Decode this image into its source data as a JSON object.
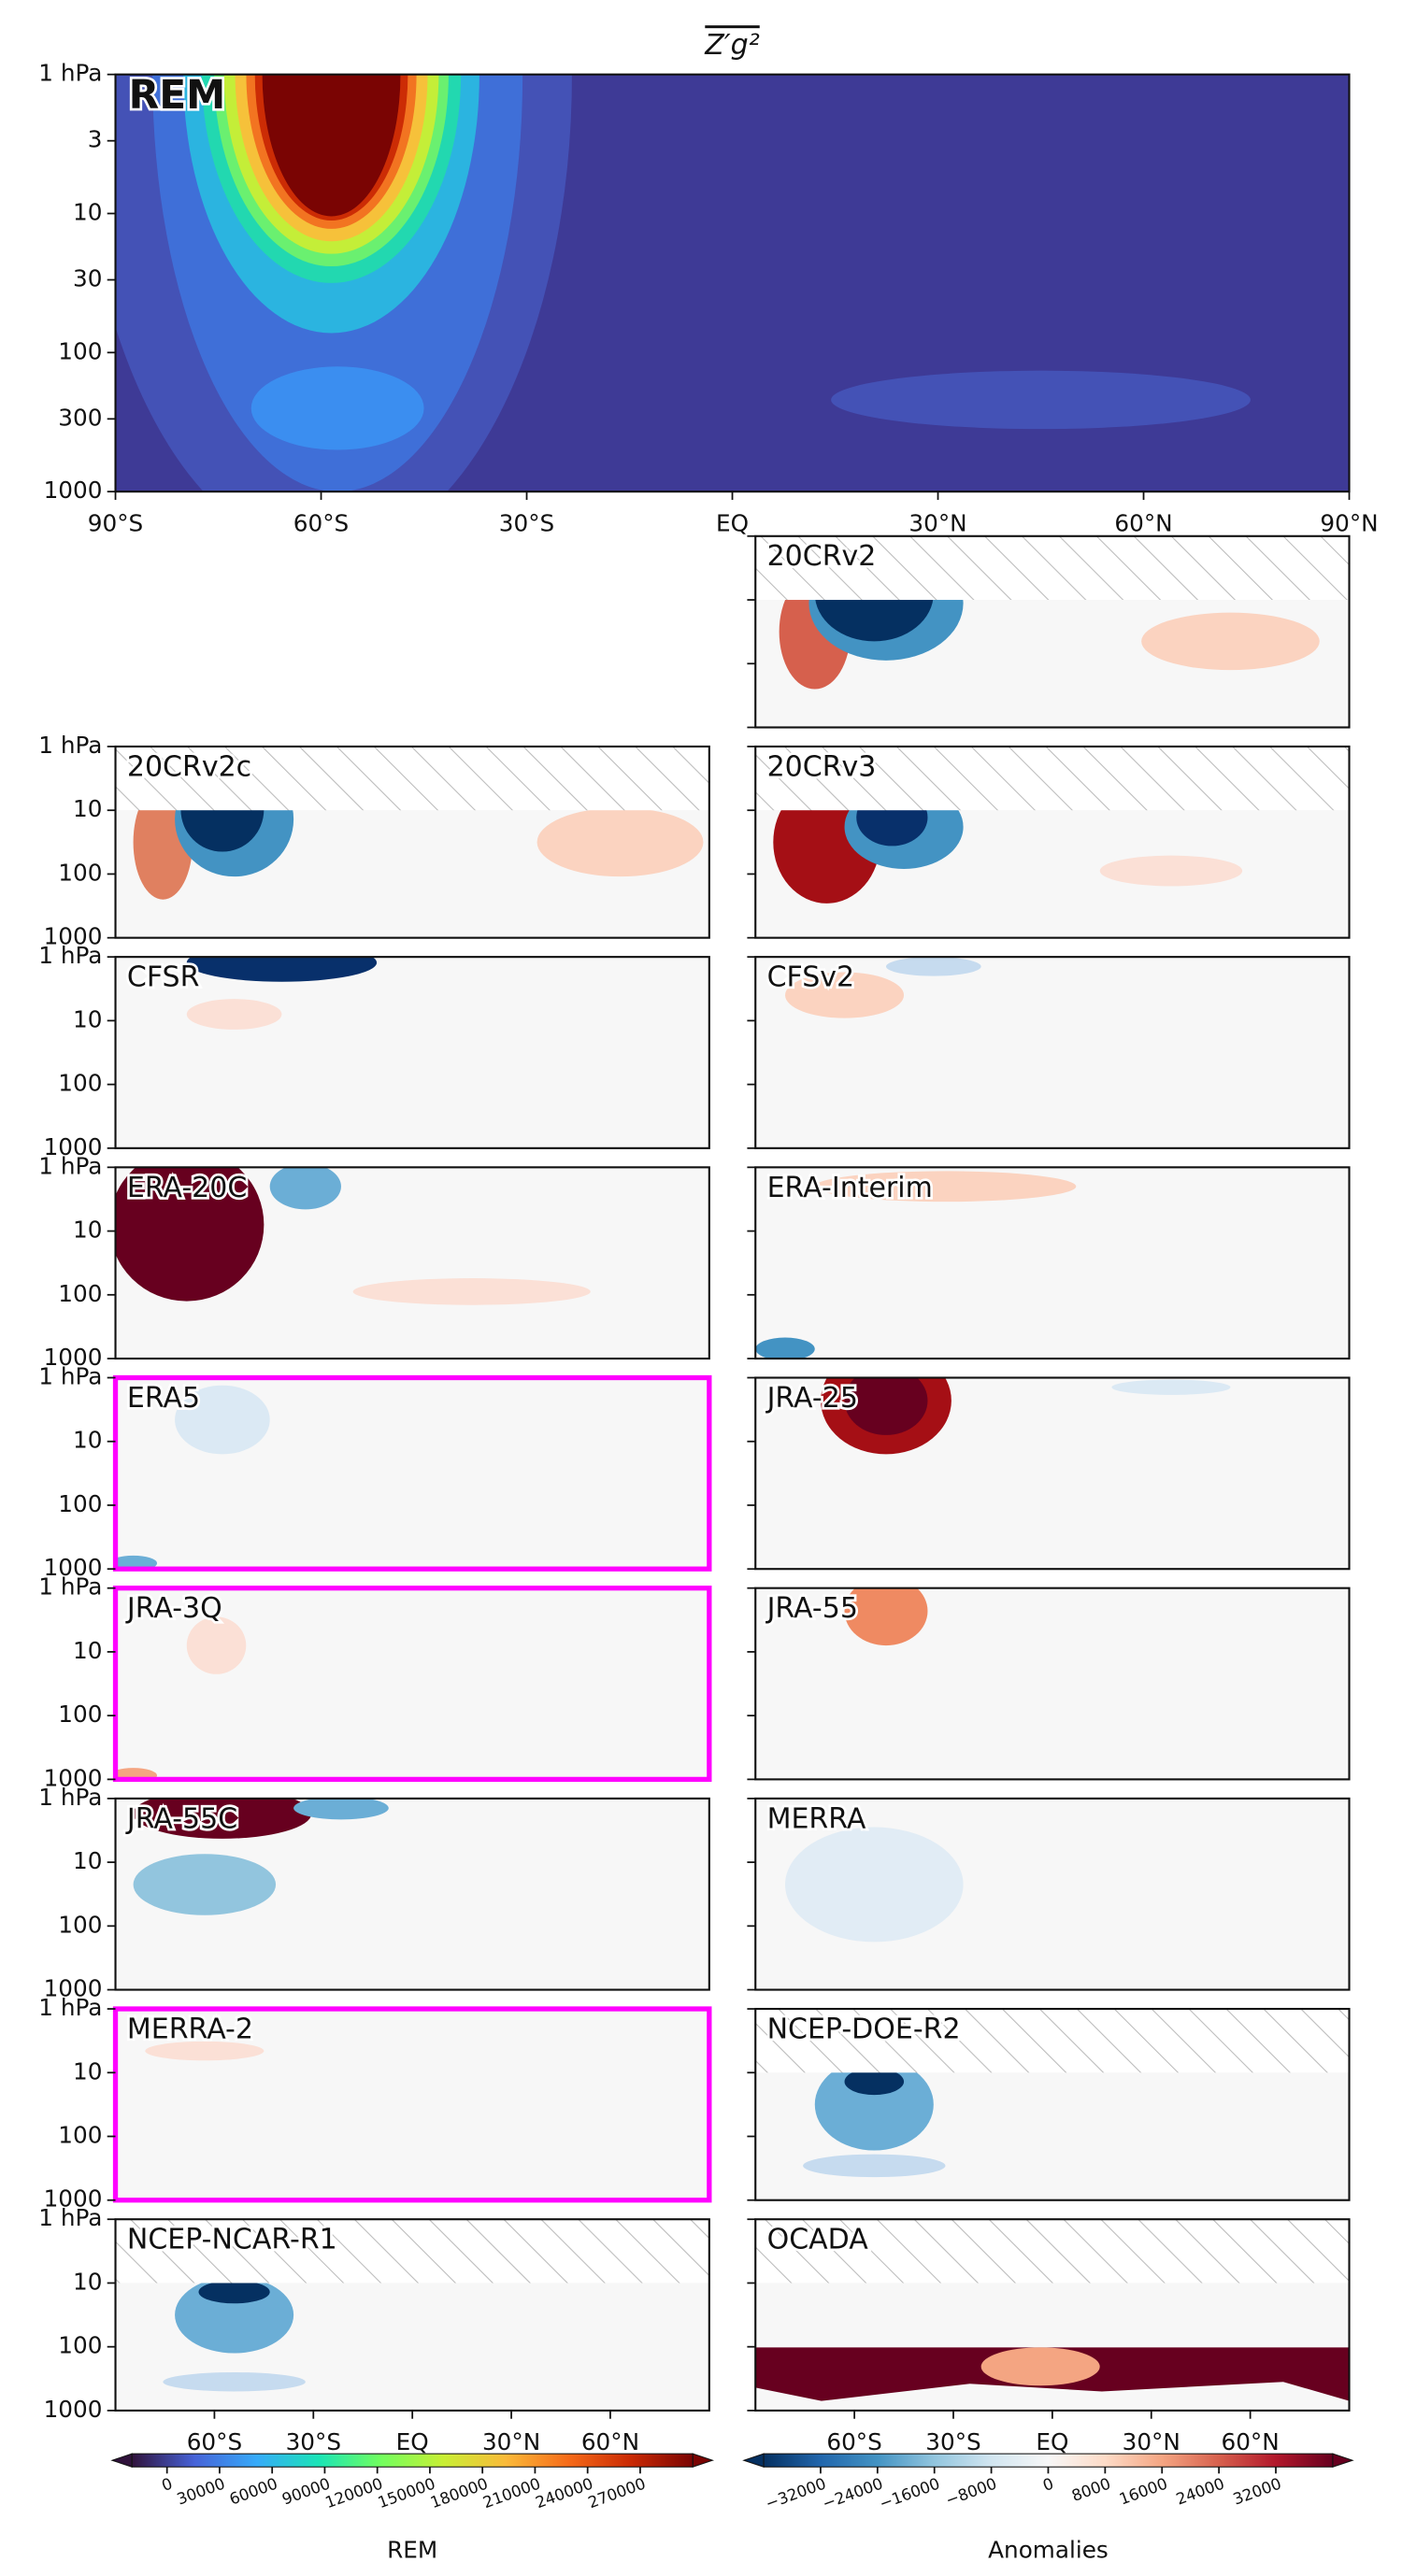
{
  "chart_data": {
    "type": "contour",
    "title": "Z′g²",
    "xlim": [
      -90,
      90
    ],
    "xticks": [
      {
        "value": -90,
        "label": "90°S"
      },
      {
        "value": -60,
        "label": "60°S"
      },
      {
        "value": -30,
        "label": "30°S"
      },
      {
        "value": 0,
        "label": "EQ"
      },
      {
        "value": 30,
        "label": "30°N"
      },
      {
        "value": 60,
        "label": "60°N"
      },
      {
        "value": 90,
        "label": "90°N"
      }
    ],
    "ylim": [
      1000,
      1
    ],
    "log_y": true,
    "yticks": [
      {
        "value": 1,
        "label": "1 hPa"
      },
      3,
      10,
      30,
      100,
      300,
      1000
    ],
    "rem_label": "REM",
    "rem_label_color": "#ff22ff",
    "panel_yticks": [
      {
        "value": 1,
        "label": "1 hPa"
      },
      10,
      100,
      1000
    ],
    "panel_xticks": [
      {
        "value": -60,
        "label": "60°S"
      },
      {
        "value": -30,
        "label": "30°S"
      },
      {
        "value": 0,
        "label": "EQ"
      },
      {
        "value": 30,
        "label": "30°N"
      },
      {
        "value": 60,
        "label": "60°N"
      }
    ],
    "highlight_color": "#ff00ff",
    "panels": [
      {
        "name": "20CRv2",
        "hatch_top_hpa": 10
      },
      {
        "name": "20CRv2c",
        "hatch_top_hpa": 10
      },
      {
        "name": "20CRv3",
        "hatch_top_hpa": 10
      },
      {
        "name": "CFSR"
      },
      {
        "name": "CFSv2"
      },
      {
        "name": "ERA-20C"
      },
      {
        "name": "ERA-Interim"
      },
      {
        "name": "ERA5",
        "highlight": true
      },
      {
        "name": "JRA-25"
      },
      {
        "name": "JRA-3Q",
        "highlight": true
      },
      {
        "name": "JRA-55"
      },
      {
        "name": "JRA-55C"
      },
      {
        "name": "MERRA"
      },
      {
        "name": "MERRA-2",
        "highlight": true
      },
      {
        "name": "NCEP-DOE-R2",
        "hatch_top_hpa": 10
      },
      {
        "name": "NCEP-NCAR-R1",
        "hatch_top_hpa": 10
      },
      {
        "name": "OCADA",
        "hatch_top_hpa": 10
      }
    ],
    "colorbars": [
      {
        "label": "REM",
        "colormap": "turbo",
        "clim": [
          -20000,
          300000
        ],
        "ticks": [
          0,
          30000,
          60000,
          90000,
          120000,
          150000,
          180000,
          210000,
          240000,
          270000
        ]
      },
      {
        "label": "Anomalies",
        "colormap": "RdBu_r",
        "clim": [
          -40000,
          40000
        ],
        "ticks": [
          {
            "value": -32000,
            "label": "−32000"
          },
          {
            "value": -24000,
            "label": "−24000"
          },
          {
            "value": -16000,
            "label": "−16000"
          },
          {
            "value": -8000,
            "label": "−8000"
          },
          0,
          8000,
          16000,
          24000,
          32000
        ]
      }
    ]
  }
}
